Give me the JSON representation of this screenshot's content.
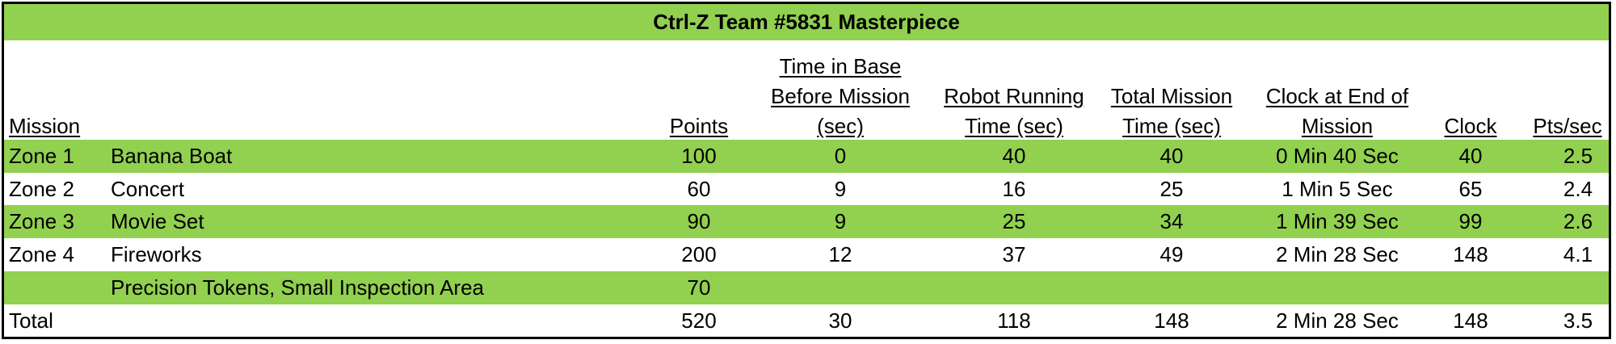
{
  "title": "Ctrl-Z Team #5831 Masterpiece",
  "headers": {
    "mission": "Mission",
    "points": "Points",
    "time_in_base": [
      "Time in Base",
      "Before Mission",
      "(sec)"
    ],
    "robot_running": [
      "Robot Running",
      "Time (sec)"
    ],
    "total_mission": [
      "Total Mission",
      "Time (sec)"
    ],
    "clock_at_end": [
      "Clock at End of",
      "Mission"
    ],
    "clock": "Clock",
    "pts_per_sec": "Pts/sec"
  },
  "rows": [
    {
      "zone": "Zone 1",
      "name": "Banana Boat",
      "points": "100",
      "base": "0",
      "robot": "40",
      "total": "40",
      "clock_end": "0 Min 40 Sec",
      "clock": "40",
      "pps": "2.5",
      "shade": "green"
    },
    {
      "zone": "Zone 2",
      "name": "Concert",
      "points": "60",
      "base": "9",
      "robot": "16",
      "total": "25",
      "clock_end": "1 Min 5 Sec",
      "clock": "65",
      "pps": "2.4",
      "shade": "white"
    },
    {
      "zone": "Zone 3",
      "name": "Movie Set",
      "points": "90",
      "base": "9",
      "robot": "25",
      "total": "34",
      "clock_end": "1 Min 39 Sec",
      "clock": "99",
      "pps": "2.6",
      "shade": "green"
    },
    {
      "zone": "Zone 4",
      "name": "Fireworks",
      "points": "200",
      "base": "12",
      "robot": "37",
      "total": "49",
      "clock_end": "2 Min 28 Sec",
      "clock": "148",
      "pps": "4.1",
      "shade": "white"
    },
    {
      "zone": "",
      "name": "Precision Tokens, Small Inspection Area",
      "points": "70",
      "base": "",
      "robot": "",
      "total": "",
      "clock_end": "",
      "clock": "",
      "pps": "",
      "shade": "green"
    },
    {
      "zone": "Total",
      "name": "",
      "points": "520",
      "base": "30",
      "robot": "118",
      "total": "148",
      "clock_end": "2 Min 28 Sec",
      "clock": "148",
      "pps": "3.5",
      "shade": "white"
    }
  ],
  "colors": {
    "row_green": "#92d050",
    "border": "#000000"
  }
}
